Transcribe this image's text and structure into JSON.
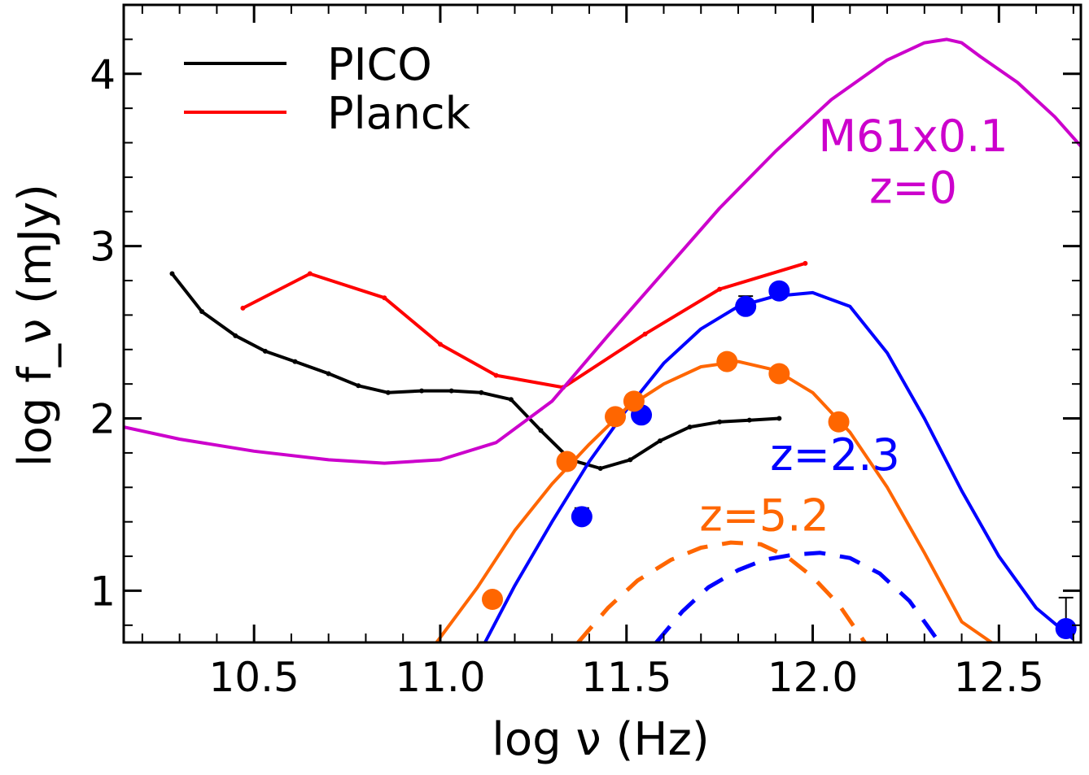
{
  "chart_data": {
    "type": "line",
    "xlabel": "log ν (Hz)",
    "ylabel": "log f_ν (mJy)",
    "xlim": [
      10.15,
      12.72
    ],
    "ylim": [
      0.7,
      4.4
    ],
    "x_ticks": [
      "10.5",
      "11.0",
      "11.5",
      "12.0",
      "12.5"
    ],
    "y_ticks": [
      "1",
      "2",
      "3",
      "4"
    ],
    "legend_placement": "top-left",
    "legend": [
      {
        "label": "PICO",
        "color": "#000000"
      },
      {
        "label": "Planck",
        "color": "#ff0000"
      }
    ],
    "annotations": [
      {
        "text": "M61x0.1",
        "color": "#cc00cc",
        "x": 12.27,
        "y": 3.55
      },
      {
        "text": "z=0",
        "color": "#cc00cc",
        "x": 12.27,
        "y": 3.25
      },
      {
        "text": "z=2.3",
        "color": "#0000ff",
        "x": 12.06,
        "y": 1.7
      },
      {
        "text": "z=5.2",
        "color": "#ff6600",
        "x": 11.87,
        "y": 1.35
      }
    ],
    "series": [
      {
        "name": "PICO",
        "color": "#000000",
        "style": "solid",
        "markers": true,
        "x": [
          10.28,
          10.36,
          10.45,
          10.53,
          10.61,
          10.7,
          10.78,
          10.86,
          10.95,
          11.03,
          11.11,
          11.19,
          11.27,
          11.35,
          11.43,
          11.51,
          11.59,
          11.67,
          11.75,
          11.83,
          11.91
        ],
        "y": [
          2.84,
          2.62,
          2.48,
          2.39,
          2.33,
          2.26,
          2.19,
          2.15,
          2.16,
          2.16,
          2.15,
          2.11,
          1.93,
          1.76,
          1.71,
          1.76,
          1.87,
          1.95,
          1.98,
          1.99,
          2.0
        ]
      },
      {
        "name": "Planck",
        "color": "#ff0000",
        "style": "solid",
        "markers": true,
        "x": [
          10.47,
          10.65,
          10.85,
          11.0,
          11.15,
          11.33,
          11.55,
          11.75,
          11.98
        ],
        "y": [
          2.64,
          2.84,
          2.7,
          2.43,
          2.25,
          2.18,
          2.49,
          2.75,
          2.9
        ]
      },
      {
        "color": "#cc00cc",
        "style": "solid",
        "markers": false,
        "x": [
          10.15,
          10.3,
          10.5,
          10.7,
          10.85,
          11.0,
          11.15,
          11.3,
          11.45,
          11.6,
          11.75,
          11.9,
          12.05,
          12.2,
          12.3,
          12.36,
          12.4,
          12.45,
          12.55,
          12.65,
          12.72
        ],
        "y": [
          1.95,
          1.88,
          1.81,
          1.76,
          1.74,
          1.76,
          1.86,
          2.1,
          2.48,
          2.85,
          3.22,
          3.55,
          3.85,
          4.08,
          4.18,
          4.2,
          4.18,
          4.1,
          3.95,
          3.75,
          3.58
        ]
      },
      {
        "color": "#0000ff",
        "style": "solid",
        "markers": false,
        "x": [
          11.12,
          11.2,
          11.3,
          11.4,
          11.5,
          11.6,
          11.7,
          11.8,
          11.9,
          12.0,
          12.1,
          12.2,
          12.3,
          12.4,
          12.5,
          12.6,
          12.7
        ],
        "y": [
          0.7,
          1.03,
          1.4,
          1.75,
          2.05,
          2.32,
          2.52,
          2.65,
          2.71,
          2.73,
          2.65,
          2.38,
          2.0,
          1.58,
          1.2,
          0.9,
          0.72
        ]
      },
      {
        "color": "#ff6600",
        "style": "solid",
        "markers": false,
        "x": [
          10.99,
          11.1,
          11.2,
          11.3,
          11.4,
          11.5,
          11.6,
          11.7,
          11.8,
          11.9,
          12.0,
          12.1,
          12.2,
          12.3,
          12.4,
          12.48
        ],
        "y": [
          0.7,
          1.02,
          1.35,
          1.62,
          1.85,
          2.06,
          2.2,
          2.3,
          2.33,
          2.28,
          2.15,
          1.92,
          1.6,
          1.22,
          0.82,
          0.7
        ]
      },
      {
        "color": "#0000ff",
        "style": "dashed",
        "markers": false,
        "x": [
          11.58,
          11.65,
          11.72,
          11.8,
          11.87,
          11.95,
          12.02,
          12.1,
          12.18,
          12.26,
          12.34
        ],
        "y": [
          0.7,
          0.88,
          1.02,
          1.12,
          1.18,
          1.21,
          1.22,
          1.19,
          1.1,
          0.94,
          0.7
        ]
      },
      {
        "color": "#ff6600",
        "style": "dashed",
        "markers": false,
        "x": [
          11.37,
          11.45,
          11.53,
          11.62,
          11.7,
          11.78,
          11.86,
          11.93,
          12.0,
          12.07,
          12.14
        ],
        "y": [
          0.7,
          0.9,
          1.06,
          1.18,
          1.25,
          1.28,
          1.27,
          1.2,
          1.08,
          0.92,
          0.7
        ]
      },
      {
        "color": "#0000ff",
        "style": "points",
        "markers": true,
        "x": [
          11.38,
          11.54,
          11.82,
          11.91,
          12.68
        ],
        "y": [
          1.43,
          2.02,
          2.65,
          2.74,
          0.78
        ],
        "err_up": [
          0.05,
          0,
          0.06,
          0,
          0.18
        ]
      },
      {
        "color": "#ff6600",
        "style": "points",
        "markers": true,
        "x": [
          11.14,
          11.34,
          11.47,
          11.52,
          11.77,
          11.91,
          12.07
        ],
        "y": [
          0.95,
          1.75,
          2.01,
          2.1,
          2.33,
          2.26,
          1.98
        ]
      }
    ]
  }
}
